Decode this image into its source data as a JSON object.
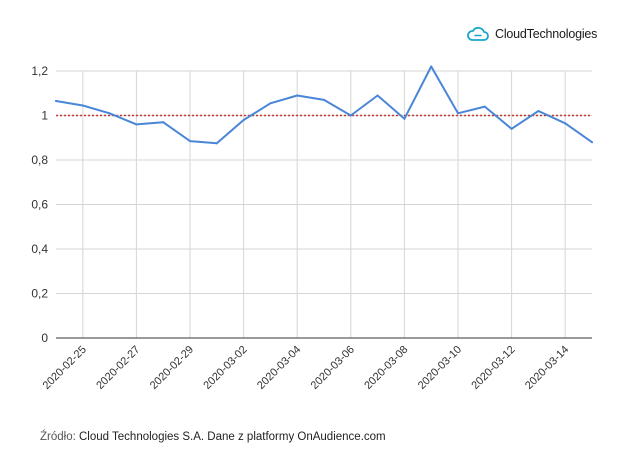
{
  "brand": {
    "name": "CloudTechnologies",
    "icon": "cloud-icon",
    "color": "#1aa6c9"
  },
  "source": {
    "label": "Źródło:",
    "text": "Cloud Technologies S.A. Dane z platformy OnAudience.com"
  },
  "chart_data": {
    "type": "line",
    "title": "",
    "xlabel": "",
    "ylabel": "",
    "x": [
      "2020-02-24",
      "2020-02-25",
      "2020-02-26",
      "2020-02-27",
      "2020-02-28",
      "2020-02-29",
      "2020-03-01",
      "2020-03-02",
      "2020-03-03",
      "2020-03-04",
      "2020-03-05",
      "2020-03-06",
      "2020-03-07",
      "2020-03-08",
      "2020-03-09",
      "2020-03-10",
      "2020-03-11",
      "2020-03-12",
      "2020-03-13",
      "2020-03-14",
      "2020-03-15"
    ],
    "x_tick_labels": [
      "2020-02-25",
      "2020-02-27",
      "2020-02-29",
      "2020-03-02",
      "2020-03-04",
      "2020-03-06",
      "2020-03-08",
      "2020-03-10",
      "2020-03-12",
      "2020-03-14"
    ],
    "series": [
      {
        "color": "#4a86d8",
        "values": [
          1.065,
          1.045,
          1.01,
          0.96,
          0.97,
          0.885,
          0.875,
          0.98,
          1.055,
          1.09,
          1.07,
          1.0,
          1.09,
          0.985,
          1.22,
          1.01,
          1.04,
          0.94,
          1.02,
          0.965,
          0.88
        ]
      }
    ],
    "reference_line": {
      "value": 1,
      "color": "#c0392b",
      "style": "dotted"
    },
    "ylim": [
      0,
      1.2
    ],
    "y_ticks": [
      0,
      0.2,
      0.4,
      0.6,
      0.8,
      1,
      1.2
    ],
    "y_tick_labels": [
      "0",
      "0,2",
      "0,4",
      "0,6",
      "0,8",
      "1",
      "1,2"
    ],
    "grid": true,
    "legend": "none"
  }
}
